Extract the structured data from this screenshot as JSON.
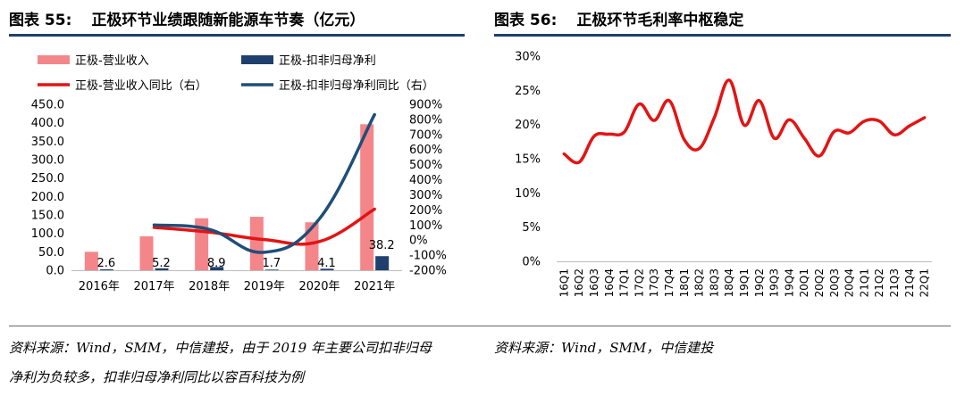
{
  "left": {
    "label": "图表 55:",
    "title": "正极环节业绩跟随新能源车节奏（亿元）",
    "source_line1": "资料来源：Wind，SMM，中信建投，由于 2019 年主要公司扣非归母",
    "source_line2": "净利为负较多，扣非归母净利同比以容百科技为例"
  },
  "right": {
    "label": "图表 56:",
    "title": "正极环节毛利率中枢稳定",
    "source_line1": "资料来源：Wind，SMM，中信建投"
  },
  "colors": {
    "revenue_bar": "#f4868a",
    "profit_bar": "#1f3f6e",
    "revenue_yoy_line": "#e31414",
    "profit_yoy_line": "#1f4e79",
    "margin_line": "#e31414",
    "title_rule": "#1f3f6e"
  },
  "chart_data": [
    {
      "type": "bar",
      "categories": [
        "2016年",
        "2017年",
        "2018年",
        "2019年",
        "2020年",
        "2021年"
      ],
      "series": [
        {
          "name": "正极-营业收入",
          "type": "bar",
          "axis": "left",
          "values": [
            50,
            92,
            141,
            145,
            130,
            396
          ]
        },
        {
          "name": "正极-扣非归母净利",
          "type": "bar",
          "axis": "left",
          "values": [
            2.6,
            5.2,
            8.9,
            1.7,
            4.1,
            38.2
          ],
          "labels": [
            "2.6",
            "5.2",
            "8.9",
            "1.7",
            "4.1",
            "38.2"
          ]
        },
        {
          "name": "正极-营业收入同比（右）",
          "type": "line",
          "axis": "right",
          "values": [
            null,
            84,
            53,
            3,
            -10,
            205
          ]
        },
        {
          "name": "正极-扣非归母净利同比（右）",
          "type": "line",
          "axis": "right",
          "values": [
            null,
            100,
            71,
            -81,
            141,
            832
          ]
        }
      ],
      "ylim_left": [
        0,
        450
      ],
      "yticks_left": [
        "0.0",
        "50.0",
        "100.0",
        "150.0",
        "200.0",
        "250.0",
        "300.0",
        "350.0",
        "400.0",
        "450.0"
      ],
      "ylim_right": [
        -200,
        900
      ],
      "yticks_right": [
        "-200%",
        "-100%",
        "0%",
        "100%",
        "200%",
        "300%",
        "400%",
        "500%",
        "600%",
        "700%",
        "800%",
        "900%"
      ],
      "legend": "top",
      "grid": false
    },
    {
      "type": "line",
      "categories": [
        "16Q1",
        "16Q2",
        "16Q3",
        "16Q4",
        "17Q1",
        "17Q2",
        "17Q3",
        "17Q4",
        "18Q1",
        "18Q2",
        "18Q3",
        "18Q4",
        "19Q1",
        "19Q2",
        "19Q3",
        "19Q4",
        "20Q1",
        "20Q2",
        "20Q3",
        "20Q4",
        "21Q1",
        "21Q2",
        "21Q3",
        "21Q4",
        "22Q1"
      ],
      "series": [
        {
          "values": [
            15.7,
            14.5,
            18.3,
            18.6,
            18.9,
            23.0,
            20.6,
            23.5,
            17.8,
            16.5,
            21.0,
            26.5,
            19.9,
            23.5,
            18.0,
            20.7,
            18.0,
            15.4,
            19.0,
            18.8,
            20.5,
            20.5,
            18.5,
            19.8,
            21.0
          ]
        }
      ],
      "ylim": [
        0,
        30
      ],
      "yticks": [
        "0%",
        "5%",
        "10%",
        "15%",
        "20%",
        "25%",
        "30%"
      ],
      "grid": false
    }
  ]
}
